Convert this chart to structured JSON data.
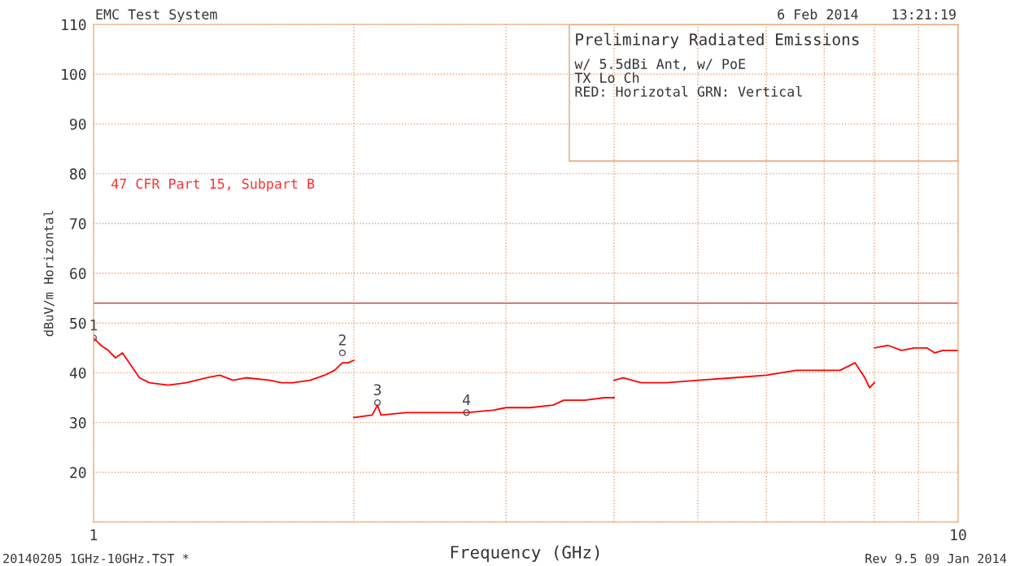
{
  "chart_data": {
    "type": "line",
    "title": "Preliminary Radiated Emissions",
    "xlabel": "Frequency (GHz)",
    "ylabel": "dBuV/m Horizontal",
    "log": "x",
    "grid": true,
    "marker": "none",
    "line_style": "solid",
    "xlim": [
      1,
      10
    ],
    "xticks": [
      1,
      {
        "value": 2,
        "label": null
      },
      {
        "value": 3,
        "label": null
      },
      {
        "value": 4,
        "label": null
      },
      {
        "value": 5,
        "label": null
      },
      {
        "value": 6,
        "label": null
      },
      {
        "value": 7,
        "label": null
      },
      {
        "value": 8,
        "label": null
      },
      {
        "value": 9,
        "label": null
      },
      10
    ],
    "ylim": [
      10,
      110
    ],
    "yticks": [
      {
        "value": 10,
        "label": null
      },
      20,
      30,
      40,
      50,
      60,
      70,
      80,
      90,
      100,
      110
    ],
    "series": [
      {
        "color": "#ff0000",
        "x": [
          1.0,
          1.02,
          1.04,
          1.06,
          1.08,
          1.1,
          1.13,
          1.16,
          1.22,
          1.28,
          1.35,
          1.4,
          1.45,
          1.5,
          1.6,
          1.65,
          1.7,
          1.78,
          1.85,
          1.9,
          1.94,
          1.97,
          2.0
        ],
        "values": [
          47,
          45.5,
          44.5,
          43,
          44,
          42,
          39,
          38,
          37.5,
          38,
          39,
          39.5,
          38.5,
          39,
          38.5,
          38,
          38,
          38.5,
          39.5,
          40.5,
          42,
          42,
          42.5
        ]
      },
      {
        "color": "#ff0000",
        "x": [
          2.0,
          2.1,
          2.13,
          2.15,
          2.3,
          2.5,
          2.7,
          2.9,
          3.0,
          3.2,
          3.4,
          3.5,
          3.7,
          3.9,
          4.0
        ],
        "values": [
          31,
          31.5,
          33.5,
          31.5,
          32,
          32,
          32,
          32.5,
          33,
          33,
          33.5,
          34.5,
          34.5,
          35,
          35
        ]
      },
      {
        "color": "#ff0000",
        "x": [
          4.0,
          4.1,
          4.3,
          4.6,
          5.0,
          5.5,
          6.0,
          6.5,
          7.0,
          7.3,
          7.6,
          7.8,
          7.9,
          8.0
        ],
        "values": [
          38.5,
          39,
          38,
          38,
          38.5,
          39,
          39.5,
          40.5,
          40.5,
          40.5,
          42,
          39,
          37,
          38
        ]
      },
      {
        "color": "#ff0000",
        "x": [
          8.0,
          8.3,
          8.6,
          8.9,
          9.2,
          9.4,
          9.6,
          9.8,
          10.0
        ],
        "values": [
          45,
          45.5,
          44.5,
          45,
          45,
          44,
          44.5,
          44.5,
          44.5
        ]
      }
    ],
    "ref_lines": [
      {
        "axis": "y",
        "value": 54,
        "color": "#c0504d",
        "line_style": "solid"
      }
    ],
    "annotations": [
      "EMC Test System",
      "6 Feb 2014    13:21:19",
      "47 CFR Part 15, Subpart B",
      "w/ 5.5dBi Ant, w/ PoE",
      "TX Lo Ch",
      "RED: Horizotal GRN: Vertical",
      "20140205 1GHz-10GHz.TST *",
      "Rev 9.5 09 Jan 2014",
      {
        "text": "1",
        "x": 1.0,
        "y": 47
      },
      {
        "text": "2",
        "x": 1.94,
        "y": 44
      },
      {
        "text": "3",
        "x": 2.13,
        "y": 34
      },
      {
        "text": "4",
        "x": 2.7,
        "y": 32
      }
    ]
  }
}
